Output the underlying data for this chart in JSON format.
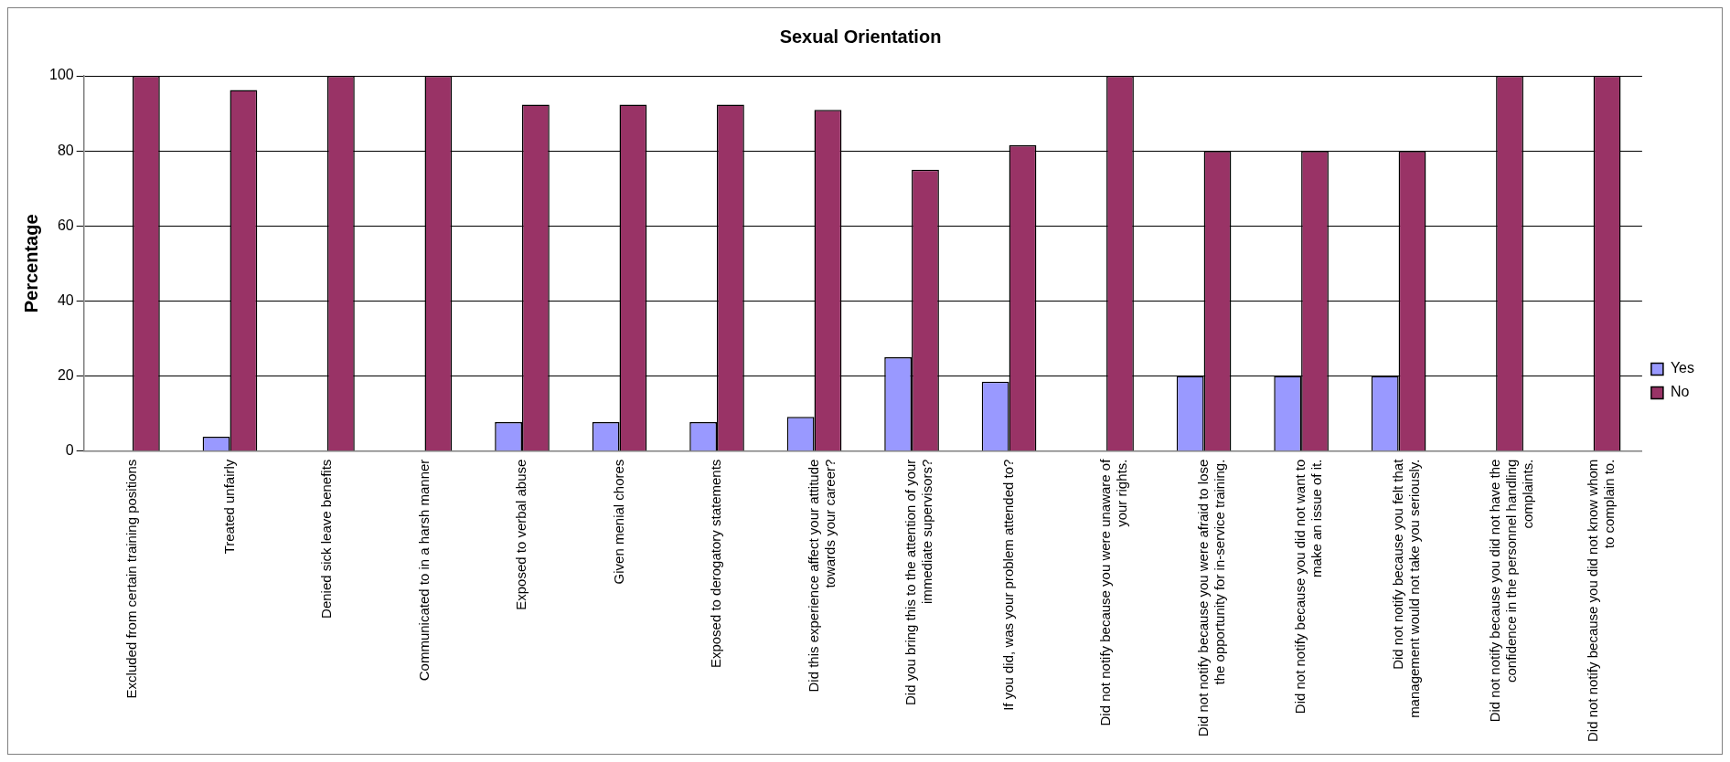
{
  "chart_data": {
    "type": "bar",
    "title": "Sexual Orientation",
    "ylabel": "Percentage",
    "categories": [
      "Excluded from certain training positions",
      "Treated unfairly",
      "Denied sick leave benefits",
      "Communicated to in a harsh manner",
      "Exposed to verbal abuse",
      "Given menial chores",
      "Exposed to derogatory statements",
      "Did this experience affect your attitude towards your career?",
      "Did you bring this to the attention of your immediate supervisors?",
      "If you did, was your problem attended to?",
      "Did not notify because you were unaware of your rights.",
      "Did not notify because you were afraid to lose the opportunity for in-service training.",
      "Did not notify because you did not want to make an issue of it.",
      "Did not notify because you felt that management would not take you seriously.",
      "Did not notify because you did not have the confidence in the personnel handling complaints.",
      "Did not notify because you did not know whom to complain to."
    ],
    "series": [
      {
        "name": "Yes",
        "color": "#9999ff",
        "values": [
          0,
          3.8,
          0,
          0,
          7.7,
          7.7,
          7.7,
          9.1,
          25,
          18.5,
          0,
          20,
          20,
          20,
          0,
          0
        ]
      },
      {
        "name": "No",
        "color": "#993366",
        "values": [
          100,
          96.2,
          100,
          100,
          92.3,
          92.3,
          92.3,
          90.9,
          75,
          81.5,
          100,
          80,
          80,
          80,
          100,
          100
        ]
      }
    ],
    "ylim": [
      0,
      100
    ],
    "yticks": [
      0,
      20,
      40,
      60,
      80,
      100
    ],
    "grid": "y",
    "legend": "right"
  }
}
